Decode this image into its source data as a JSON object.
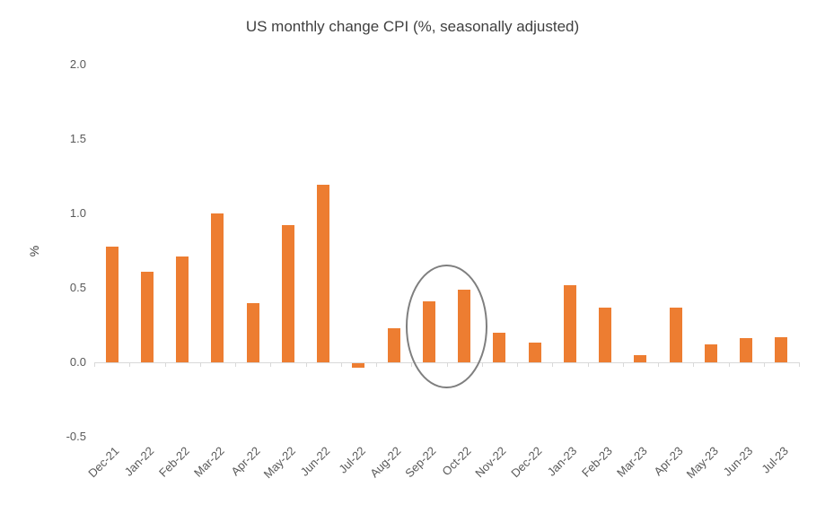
{
  "chart_data": {
    "type": "bar",
    "title": "US monthly change CPI (%, seasonally adjusted)",
    "xlabel": "",
    "ylabel": "%",
    "categories": [
      "Dec-21",
      "Jan-22",
      "Feb-22",
      "Mar-22",
      "Apr-22",
      "May-22",
      "Jun-22",
      "Jul-22",
      "Aug-22",
      "Sep-22",
      "Oct-22",
      "Nov-22",
      "Dec-22",
      "Jan-23",
      "Feb-23",
      "Mar-23",
      "Apr-23",
      "May-23",
      "Jun-23",
      "Jul-23"
    ],
    "values": [
      0.78,
      0.61,
      0.71,
      1.0,
      0.4,
      0.92,
      1.19,
      -0.03,
      0.23,
      0.41,
      0.49,
      0.2,
      0.13,
      0.52,
      0.37,
      0.05,
      0.37,
      0.12,
      0.16,
      0.17
    ],
    "ylim": [
      -0.5,
      2.0
    ],
    "yticks": [
      2.0,
      1.5,
      1.0,
      0.5,
      0.0,
      -0.5
    ],
    "grid": false,
    "legend_position": "none",
    "bar_color": "#ed7d31",
    "annotation": {
      "shape": "ellipse",
      "from_category": "Sep-22",
      "to_category": "Oct-22",
      "color": "#7f7f7f"
    }
  }
}
